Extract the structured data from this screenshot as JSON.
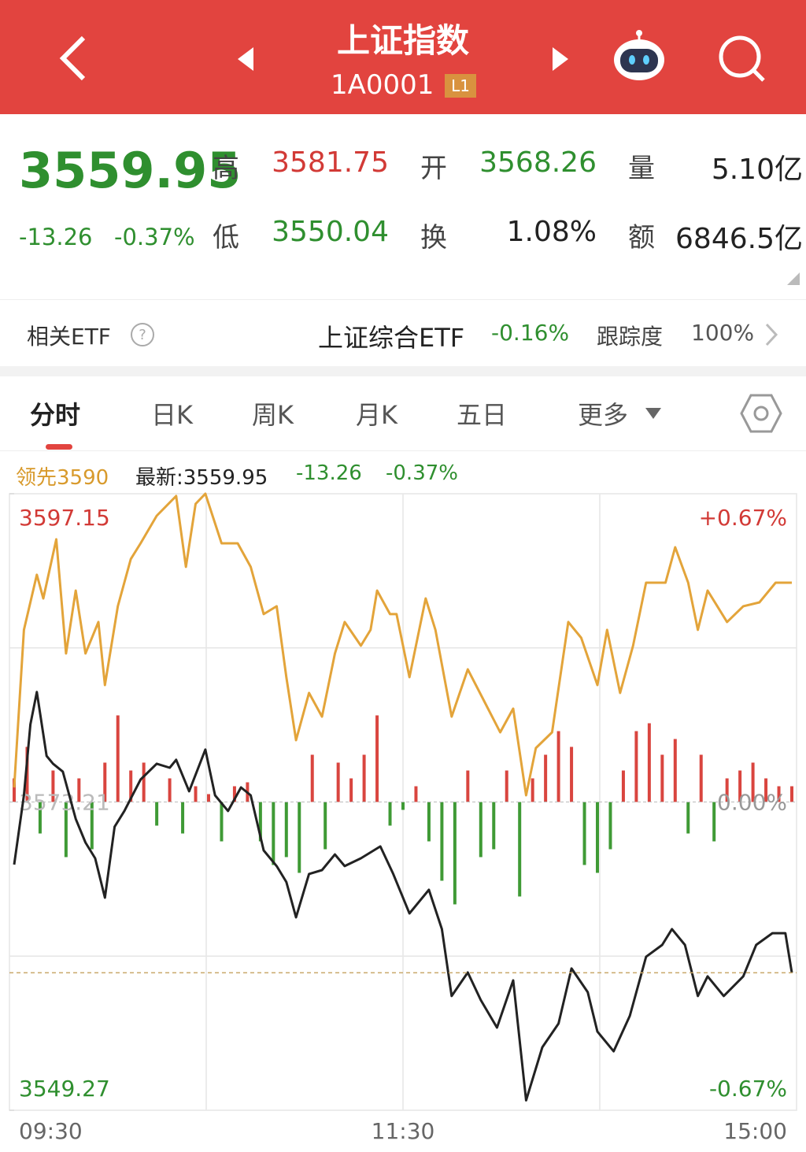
{
  "header": {
    "title": "上证指数",
    "code": "1A0001",
    "badge": "L1"
  },
  "quote": {
    "price": "3559.95",
    "change": "-13.26",
    "change_pct": "-0.37%",
    "fields": [
      {
        "label": "高",
        "value": "3581.75",
        "color": "#d23a36"
      },
      {
        "label": "开",
        "value": "3568.26",
        "color": "#2f8f2f"
      },
      {
        "label": "量",
        "value": "5.10亿",
        "color": "#222222"
      },
      {
        "label": "低",
        "value": "3550.04",
        "color": "#2f8f2f"
      },
      {
        "label": "换",
        "value": "1.08%",
        "color": "#222222"
      },
      {
        "label": "额",
        "value": "6846.5亿",
        "color": "#222222"
      }
    ]
  },
  "etf": {
    "label": "相关ETF",
    "name": "上证综合ETF",
    "change": "-0.16%",
    "tracking_label": "跟踪度",
    "tracking": "100%"
  },
  "tabs": [
    "分时",
    "日K",
    "周K",
    "月K",
    "五日",
    "更多"
  ],
  "legend": {
    "lead": "领先3590",
    "latest": "最新:3559.95",
    "change": "-13.26",
    "pct": "-0.37%"
  },
  "chart_data": {
    "type": "line",
    "xlim": [
      0,
      240
    ],
    "xticks": [
      {
        "value": 0,
        "label": "09:30"
      },
      {
        "value": 120,
        "label": "11:30"
      },
      {
        "value": 240,
        "label": "15:00"
      }
    ],
    "ylim": [
      3549.27,
      3597.15
    ],
    "yticks": [
      3597.15,
      3573.21,
      3549.27
    ],
    "y2lim": [
      -0.67,
      0.67
    ],
    "y2ticks": [
      {
        "value": 0.67,
        "label": "+0.67%"
      },
      {
        "value": 0,
        "label": "0.00%"
      },
      {
        "value": -0.67,
        "label": "-0.67%"
      }
    ],
    "grid": true,
    "series": [
      {
        "color": "#e3a43a",
        "x": [
          0,
          3,
          7,
          9,
          13,
          16,
          19,
          22,
          26,
          28,
          32,
          36,
          39,
          44,
          50,
          53,
          56,
          59,
          64,
          69,
          73,
          77,
          81,
          84,
          87,
          91,
          95,
          99,
          102,
          107,
          110,
          112,
          116,
          118,
          122,
          127,
          130,
          135,
          140,
          145,
          150,
          154,
          158,
          161,
          166,
          171,
          175,
          180,
          183,
          187,
          191,
          195,
          201,
          204,
          208,
          211,
          214,
          220,
          225,
          230,
          235,
          240
        ],
        "values": [
          3574.34,
          3586.58,
          3590.86,
          3589.02,
          3593.61,
          3584.74,
          3589.63,
          3584.74,
          3587.19,
          3582.29,
          3588.41,
          3592.08,
          3593.3,
          3595.44,
          3596.97,
          3591.47,
          3596.36,
          3597.15,
          3593.3,
          3593.3,
          3591.47,
          3587.8,
          3588.41,
          3582.9,
          3578.01,
          3581.68,
          3579.84,
          3584.74,
          3587.19,
          3585.35,
          3586.58,
          3589.63,
          3587.8,
          3587.8,
          3582.9,
          3589.02,
          3586.58,
          3579.84,
          3583.51,
          3581.07,
          3578.62,
          3580.46,
          3573.73,
          3577.4,
          3578.62,
          3587.19,
          3585.96,
          3582.29,
          3586.58,
          3581.68,
          3585.35,
          3590.24,
          3590.24,
          3592.99,
          3590.24,
          3586.58,
          3589.63,
          3587.19,
          3588.41,
          3588.71,
          3590.24,
          3590.24
        ]
      },
      {
        "color": "#222222",
        "x": [
          0,
          3,
          5,
          7,
          10,
          12,
          15,
          19,
          22,
          25,
          28,
          31,
          34,
          39,
          44,
          48,
          50,
          54,
          59,
          62,
          66,
          70,
          73,
          77,
          81,
          84,
          87,
          91,
          95,
          99,
          102,
          107,
          113,
          117,
          122,
          128,
          132,
          135,
          140,
          144,
          149,
          154,
          158,
          163,
          168,
          172,
          177,
          180,
          185,
          190,
          195,
          200,
          203,
          207,
          211,
          214,
          219,
          225,
          229,
          234,
          238,
          240
        ],
        "values": [
          3568.35,
          3573.73,
          3579.23,
          3581.75,
          3576.79,
          3576.18,
          3575.57,
          3571.9,
          3570.06,
          3568.84,
          3565.78,
          3571.29,
          3572.51,
          3574.95,
          3576.18,
          3575.87,
          3576.49,
          3574.04,
          3577.28,
          3573.73,
          3572.51,
          3574.34,
          3573.73,
          3569.45,
          3568.23,
          3567.0,
          3564.25,
          3567.62,
          3567.92,
          3569.14,
          3568.23,
          3568.84,
          3569.76,
          3567.62,
          3564.56,
          3566.39,
          3563.34,
          3558.14,
          3559.97,
          3557.83,
          3555.69,
          3559.36,
          3550.04,
          3554.16,
          3556.0,
          3560.28,
          3558.44,
          3555.38,
          3553.85,
          3556.61,
          3561.19,
          3562.11,
          3563.34,
          3562.11,
          3558.14,
          3559.67,
          3558.14,
          3559.67,
          3562.11,
          3563.02,
          3563.02,
          3559.95
        ]
      }
    ],
    "bars": {
      "up_color": "#d9453f",
      "down_color": "#3f9a35",
      "x": [
        0,
        4,
        8,
        12,
        16,
        20,
        24,
        28,
        32,
        36,
        40,
        44,
        48,
        52,
        56,
        60,
        64,
        68,
        72,
        76,
        80,
        84,
        88,
        92,
        96,
        100,
        104,
        108,
        112,
        116,
        120,
        124,
        128,
        132,
        136,
        140,
        144,
        148,
        152,
        156,
        160,
        164,
        168,
        172,
        176,
        180,
        184,
        188,
        192,
        196,
        200,
        204,
        208,
        212,
        216,
        220,
        224,
        228,
        232,
        236,
        240
      ],
      "values": [
        30,
        70,
        -40,
        40,
        -70,
        30,
        -60,
        50,
        110,
        40,
        50,
        -30,
        30,
        -40,
        20,
        10,
        -50,
        20,
        25,
        -50,
        -80,
        -70,
        -90,
        60,
        -60,
        50,
        30,
        60,
        110,
        -30,
        -10,
        20,
        -50,
        -100,
        -130,
        40,
        -70,
        -60,
        40,
        -120,
        30,
        60,
        90,
        70,
        -80,
        -90,
        -60,
        40,
        90,
        100,
        60,
        80,
        -40,
        60,
        -50,
        30,
        40,
        50,
        30,
        20,
        20
      ]
    }
  }
}
